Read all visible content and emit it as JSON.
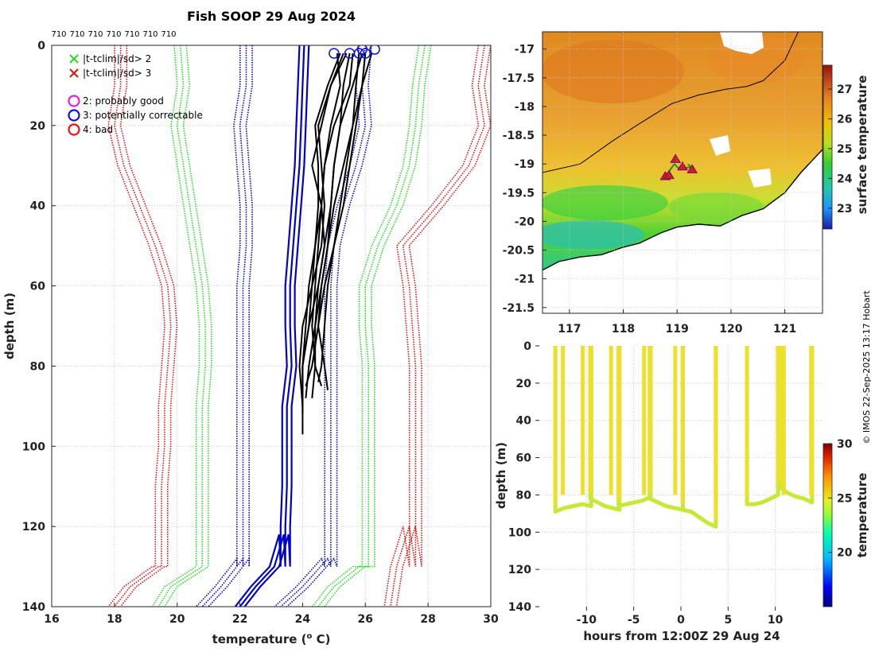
{
  "title": "Fish SOOP 29 Aug 2024",
  "credit": "© IMOS 22-Sep-2025 13:17 Hobart",
  "colors": {
    "sd2": "#22dd22",
    "sd3": "#dd1111",
    "flag2": "#e020e0",
    "flag3": "#1111dd",
    "flag4": "#ee1111",
    "profile": "#000000",
    "climate_mean": "#0000cc",
    "coast": "#000000",
    "land": "#ffffff"
  },
  "chart_data": [
    {
      "type": "line",
      "name": "profiles",
      "title": "Fish SOOP 29 Aug 2024",
      "xlabel": "temperature (o C)",
      "xlabel_prefix": "temperature (",
      "xlabel_sup": "o",
      "xlabel_suffix": " C)",
      "ylabel": "depth (m)",
      "xlim": [
        16,
        30
      ],
      "ylim": [
        140,
        0
      ],
      "xticks": [
        "16",
        "18",
        "20",
        "22",
        "24",
        "26",
        "28",
        "30"
      ],
      "yticks": [
        "0",
        "20",
        "40",
        "60",
        "80",
        "100",
        "120",
        "140"
      ],
      "top_labels": [
        "710",
        "710",
        "710",
        "710",
        "710",
        "710",
        "710"
      ],
      "legend": [
        {
          "marker": "x",
          "color": "#22dd22",
          "label": "|t-tclim|/sd> 2"
        },
        {
          "marker": "x",
          "color": "#dd1111",
          "label": "|t-tclim|/sd> 3"
        },
        {
          "marker": "o",
          "color": "#e020e0",
          "label": "2: probably good"
        },
        {
          "marker": "o",
          "color": "#1111dd",
          "label": "3: potentially correctable"
        },
        {
          "marker": "o",
          "color": "#ee1111",
          "label": "4: bad"
        }
      ],
      "climatology": {
        "depths": [
          0,
          10,
          20,
          30,
          40,
          50,
          60,
          70,
          80,
          90,
          100,
          110,
          120,
          130
        ],
        "mean": [
          24.05,
          24.0,
          23.95,
          23.9,
          23.8,
          23.7,
          23.6,
          23.6,
          23.65,
          23.5,
          23.5,
          23.5,
          23.45,
          23.45
        ],
        "offsets": [
          0.15,
          0.0,
          -0.15
        ],
        "sd2_left": [
          20.1,
          20.2,
          20.0,
          20.2,
          20.4,
          20.6,
          20.8,
          20.9,
          20.9,
          20.8,
          20.8,
          20.8,
          20.8,
          20.8
        ],
        "sd2_right": [
          27.9,
          27.7,
          27.6,
          27.4,
          27.0,
          26.4,
          26.0,
          26.0,
          26.1,
          26.1,
          26.1,
          26.1,
          26.1,
          26.1
        ],
        "sd3_left": [
          18.2,
          18.2,
          18.0,
          18.3,
          18.8,
          19.3,
          19.7,
          19.8,
          19.7,
          19.6,
          19.6,
          19.5,
          19.5,
          19.5
        ],
        "sd3_right": [
          29.8,
          29.6,
          29.8,
          29.3,
          28.3,
          27.2,
          27.4,
          27.5,
          27.6,
          27.6,
          27.6,
          27.6,
          27.6,
          27.6
        ],
        "blue_left": [
          22.2,
          22.2,
          22.0,
          22.1,
          22.2,
          22.2,
          22.1,
          22.1,
          22.1,
          22.1,
          22.1,
          22.1,
          22.1,
          22.1
        ],
        "blue_right": [
          26.0,
          25.9,
          26.0,
          25.7,
          25.3,
          25.0,
          24.9,
          24.9,
          24.9,
          24.9,
          24.9,
          24.9,
          24.9,
          24.9
        ],
        "sd2_left_tail": [
          [
            130,
            20.8
          ],
          [
            135,
            19.8
          ],
          [
            140,
            19.4
          ]
        ],
        "sd2_right_tail": [
          [
            130,
            25.8
          ],
          [
            135,
            25.0
          ],
          [
            140,
            24.5
          ]
        ],
        "sd3_left_tail": [
          [
            130,
            19.4
          ],
          [
            135,
            18.5
          ],
          [
            140,
            18.0
          ]
        ],
        "sd3_right_tail": [
          [
            120,
            27.4
          ],
          [
            130,
            27.0
          ],
          [
            140,
            26.8
          ]
        ],
        "blue_left_tail": [
          [
            128,
            22.1
          ],
          [
            135,
            21.4
          ],
          [
            140,
            20.8
          ]
        ],
        "blue_right_tail": [
          [
            128,
            24.8
          ],
          [
            135,
            24.0
          ],
          [
            140,
            23.3
          ]
        ],
        "mean_tail": [
          [
            122,
            23.4
          ],
          [
            130,
            23.1
          ],
          [
            135,
            22.5
          ],
          [
            140,
            22.0
          ]
        ]
      },
      "profiles": [
        {
          "depths": [
            2,
            10,
            20,
            30,
            40,
            50,
            60,
            70,
            80,
            85
          ],
          "temps": [
            26.2,
            25.9,
            25.6,
            25.3,
            25.0,
            24.8,
            24.6,
            24.5,
            24.3,
            24.1
          ]
        },
        {
          "depths": [
            2,
            10,
            20,
            30,
            40,
            50,
            60,
            70,
            80,
            88
          ],
          "temps": [
            25.6,
            25.5,
            25.0,
            24.7,
            24.6,
            24.5,
            24.4,
            24.3,
            24.4,
            24.3
          ]
        },
        {
          "depths": [
            2,
            10,
            20,
            30,
            40,
            50,
            60,
            70,
            80,
            90
          ],
          "temps": [
            25.4,
            24.9,
            24.6,
            24.3,
            24.6,
            24.7,
            24.5,
            24.2,
            24.0,
            24.0
          ]
        },
        {
          "depths": [
            2,
            10,
            20,
            30,
            40,
            50,
            60,
            70,
            80,
            86
          ],
          "temps": [
            25.8,
            25.7,
            25.6,
            25.4,
            25.2,
            25.0,
            24.7,
            24.5,
            24.7,
            24.8
          ]
        },
        {
          "depths": [
            2,
            10,
            20,
            30,
            40,
            50,
            60,
            70,
            80,
            92
          ],
          "temps": [
            25.3,
            24.9,
            24.5,
            24.6,
            24.7,
            24.6,
            24.3,
            24.2,
            24.0,
            24.0
          ]
        },
        {
          "depths": [
            2,
            10,
            20,
            30,
            40,
            50,
            60,
            70,
            80,
            84
          ],
          "temps": [
            26.0,
            25.9,
            25.7,
            25.5,
            25.3,
            25.0,
            24.8,
            24.7,
            24.6,
            24.5
          ]
        },
        {
          "depths": [
            2,
            10,
            20,
            30,
            40,
            50,
            60,
            70,
            80,
            88
          ],
          "temps": [
            25.5,
            25.3,
            25.2,
            25.0,
            24.9,
            24.7,
            24.5,
            24.4,
            24.2,
            24.1
          ]
        },
        {
          "depths": [
            2,
            10,
            20,
            30,
            40,
            50,
            60,
            70,
            80,
            97
          ],
          "temps": [
            25.2,
            24.8,
            24.4,
            24.5,
            24.5,
            24.4,
            24.2,
            24.1,
            24.0,
            24.0
          ]
        },
        {
          "depths": [
            2,
            10,
            20,
            30,
            40,
            50,
            60,
            70,
            80,
            85
          ],
          "temps": [
            25.9,
            25.6,
            25.2,
            25.0,
            24.9,
            24.8,
            24.6,
            24.4,
            24.4,
            24.6
          ]
        },
        {
          "depths": [
            2,
            10,
            20,
            30,
            40,
            50,
            60,
            70,
            80,
            90
          ],
          "temps": [
            25.1,
            25.2,
            24.9,
            24.7,
            24.6,
            24.4,
            24.3,
            24.0,
            23.9,
            24.0
          ]
        }
      ],
      "flag3_markers": [
        [
          25.0,
          2
        ],
        [
          25.5,
          2
        ],
        [
          25.8,
          2
        ],
        [
          25.9,
          1
        ],
        [
          26.0,
          2
        ],
        [
          26.3,
          1
        ]
      ]
    },
    {
      "type": "heatmap",
      "name": "sst_map",
      "xlim": [
        116.5,
        121.7
      ],
      "ylim": [
        -21.6,
        -16.7
      ],
      "xticks": [
        "117",
        "118",
        "119",
        "120",
        "121"
      ],
      "yticks": [
        "-17",
        "-17.5",
        "-18",
        "-18.5",
        "-19",
        "-19.5",
        "-20",
        "-20.5",
        "-21",
        "-21.5"
      ],
      "colorbar_label": "surface temperature",
      "colorbar_ticks": [
        "23",
        "24",
        "25",
        "26",
        "27"
      ],
      "colorbar_range": [
        22.3,
        27.8
      ],
      "isobath": [
        [
          116.5,
          -19.15
        ],
        [
          117.2,
          -19.0
        ],
        [
          117.8,
          -18.6
        ],
        [
          118.3,
          -18.3
        ],
        [
          118.9,
          -17.95
        ],
        [
          119.4,
          -17.8
        ],
        [
          119.9,
          -17.7
        ],
        [
          120.3,
          -17.65
        ],
        [
          120.6,
          -17.55
        ],
        [
          121.0,
          -17.2
        ],
        [
          121.2,
          -16.8
        ],
        [
          121.25,
          -16.7
        ]
      ],
      "coastline": [
        [
          116.5,
          -20.85
        ],
        [
          116.8,
          -20.7
        ],
        [
          117.2,
          -20.62
        ],
        [
          117.6,
          -20.58
        ],
        [
          118.0,
          -20.45
        ],
        [
          118.3,
          -20.38
        ],
        [
          118.7,
          -20.2
        ],
        [
          119.0,
          -20.1
        ],
        [
          119.4,
          -20.05
        ],
        [
          119.8,
          -20.08
        ],
        [
          120.2,
          -19.9
        ],
        [
          120.6,
          -19.78
        ],
        [
          121.0,
          -19.5
        ],
        [
          121.3,
          -19.15
        ],
        [
          121.6,
          -18.85
        ],
        [
          121.7,
          -18.75
        ]
      ],
      "tracks": [
        [
          118.78,
          -19.22
        ],
        [
          118.95,
          -19.0
        ],
        [
          119.05,
          -19.1
        ],
        [
          119.25,
          -19.05
        ],
        [
          119.2,
          -19.0
        ]
      ],
      "track_markers": [
        [
          118.78,
          -19.22
        ],
        [
          118.97,
          -18.92
        ],
        [
          119.1,
          -19.05
        ],
        [
          119.28,
          -19.1
        ],
        [
          118.85,
          -19.2
        ]
      ]
    },
    {
      "type": "scatter",
      "name": "section",
      "xlabel": "hours from 12:00Z 29 Aug 24",
      "ylabel": "depth (m)",
      "xlim": [
        -15,
        15
      ],
      "ylim": [
        140,
        0
      ],
      "xticks": [
        "-10",
        "-5",
        "0",
        "5",
        "10"
      ],
      "yticks": [
        "0",
        "20",
        "40",
        "60",
        "80",
        "100",
        "120",
        "140"
      ],
      "colorbar_label": "temperature",
      "colorbar_ticks": [
        "20",
        "25",
        "30"
      ],
      "colorbar_range": [
        15,
        30
      ],
      "casts": [
        {
          "x0": -13.3,
          "x1": -9.5,
          "bottom": [
            89,
            87,
            86,
            85,
            86
          ]
        },
        {
          "x0": -9.6,
          "x1": -6.5,
          "bottom": [
            82,
            84,
            86,
            87,
            88
          ]
        },
        {
          "x0": -6.6,
          "x1": -3.2,
          "bottom": [
            86,
            85,
            84,
            83,
            81
          ]
        },
        {
          "x0": -3.3,
          "x1": 0.2,
          "bottom": [
            82,
            84,
            86,
            87,
            88
          ]
        },
        {
          "x0": 0.2,
          "x1": 3.7,
          "bottom": [
            88,
            89,
            92,
            95,
            97
          ]
        },
        {
          "x0": 7.0,
          "x1": 10.3,
          "bottom": [
            85,
            85,
            84,
            82,
            80
          ]
        },
        {
          "x0": 10.5,
          "x1": 13.9,
          "bottom": [
            76,
            79,
            81,
            82,
            84
          ]
        }
      ],
      "cast_extra_spikes": [
        -12.5,
        -10.4,
        -7.4,
        -3.9,
        -0.6,
        3.7,
        10.9,
        13.8
      ]
    }
  ]
}
